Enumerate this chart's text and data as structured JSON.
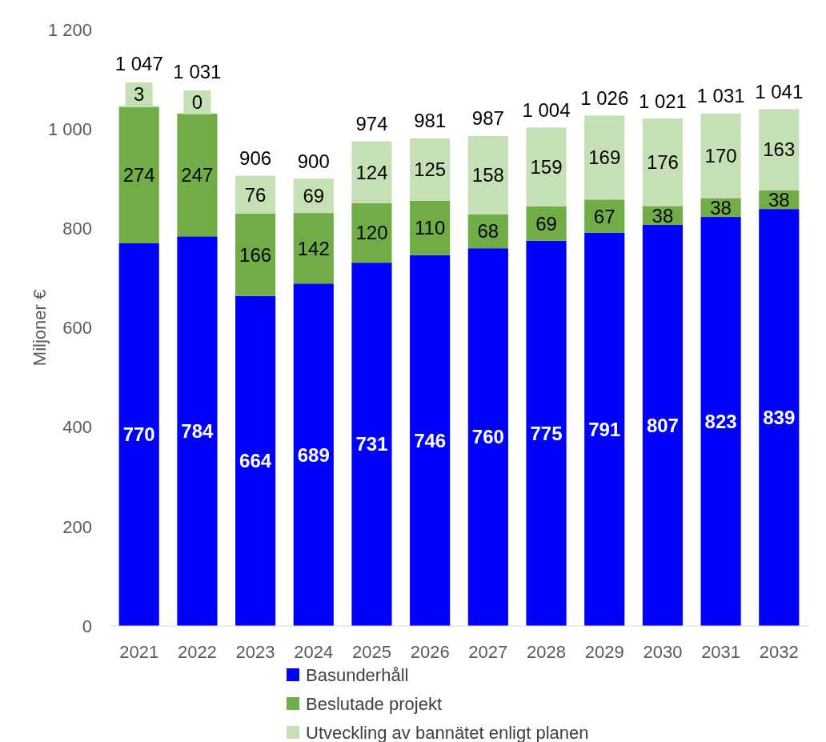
{
  "chart_data": {
    "type": "bar",
    "stacked": true,
    "ylabel": "Miljoner €",
    "categories": [
      "2021",
      "2022",
      "2023",
      "2024",
      "2025",
      "2026",
      "2027",
      "2028",
      "2029",
      "2030",
      "2031",
      "2032"
    ],
    "series": [
      {
        "name": "Basunderhåll",
        "color": "#0000ff",
        "values": [
          770,
          784,
          664,
          689,
          731,
          746,
          760,
          775,
          791,
          807,
          823,
          839
        ]
      },
      {
        "name": "Beslutade projekt",
        "color": "#70ad47",
        "values": [
          274,
          247,
          166,
          142,
          120,
          110,
          68,
          69,
          67,
          38,
          38,
          38
        ]
      },
      {
        "name": "Utveckling av bannätet enligt planen",
        "color": "#c5e0b4",
        "values": [
          3,
          0,
          76,
          69,
          124,
          125,
          158,
          159,
          169,
          176,
          170,
          163
        ]
      }
    ],
    "totals": [
      "1 047",
      "1 031",
      "906",
      "900",
      "974",
      "981",
      "987",
      "1 004",
      "1 026",
      "1 021",
      "1 031",
      "1 041"
    ],
    "data_labels": true,
    "ylim": [
      0,
      1200
    ],
    "yticks": [
      0,
      200,
      400,
      600,
      800,
      {
        "value": 1000,
        "label": "1 000"
      },
      {
        "value": 1200,
        "label": "1 200"
      }
    ],
    "grid": false,
    "legend": "bottom"
  }
}
